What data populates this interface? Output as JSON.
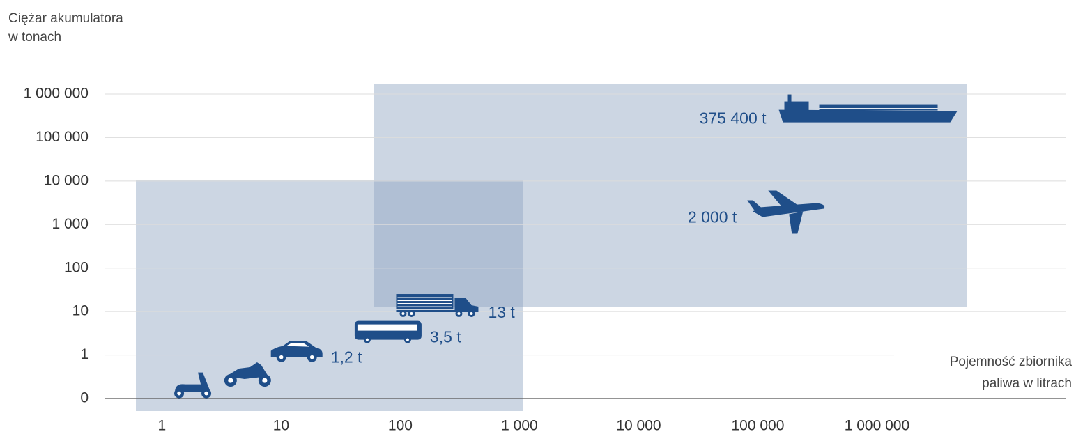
{
  "chart_data": {
    "type": "scatter",
    "y_label": [
      "Ciężar akumulatora",
      "w tonach"
    ],
    "x_label": [
      "Pojemność zbiornika",
      "paliwa w litrach"
    ],
    "log_x": true,
    "log_y": true,
    "xlim": [
      0.55,
      5000000
    ],
    "xticks": [
      1,
      10,
      100,
      {
        "value": 1000,
        "label": "1 000"
      },
      {
        "value": 10000,
        "label": "10 000"
      },
      {
        "value": 100000,
        "label": "100 000"
      },
      {
        "value": 1000000,
        "label": "1 000 000"
      }
    ],
    "ylim": [
      0,
      1000000
    ],
    "yticks": [
      0,
      1,
      10,
      100,
      {
        "value": 1000,
        "label": "1 000"
      },
      {
        "value": 10000,
        "label": "10 000"
      },
      {
        "value": 100000,
        "label": "100 000"
      },
      {
        "value": 1000000,
        "label": "1 000 000"
      }
    ],
    "grid": true,
    "color": "#1f4e89",
    "x": [
      1.8,
      5.2,
      13.5,
      79,
      207,
      178000,
      840000
    ],
    "values": [
      0.19,
      0.35,
      1.2,
      3.5,
      13,
      2000,
      375400
    ],
    "value_labels": [
      null,
      null,
      "1,2 t",
      "3,5 t",
      "13 t",
      "2 000 t",
      "375 400 t"
    ]
  }
}
